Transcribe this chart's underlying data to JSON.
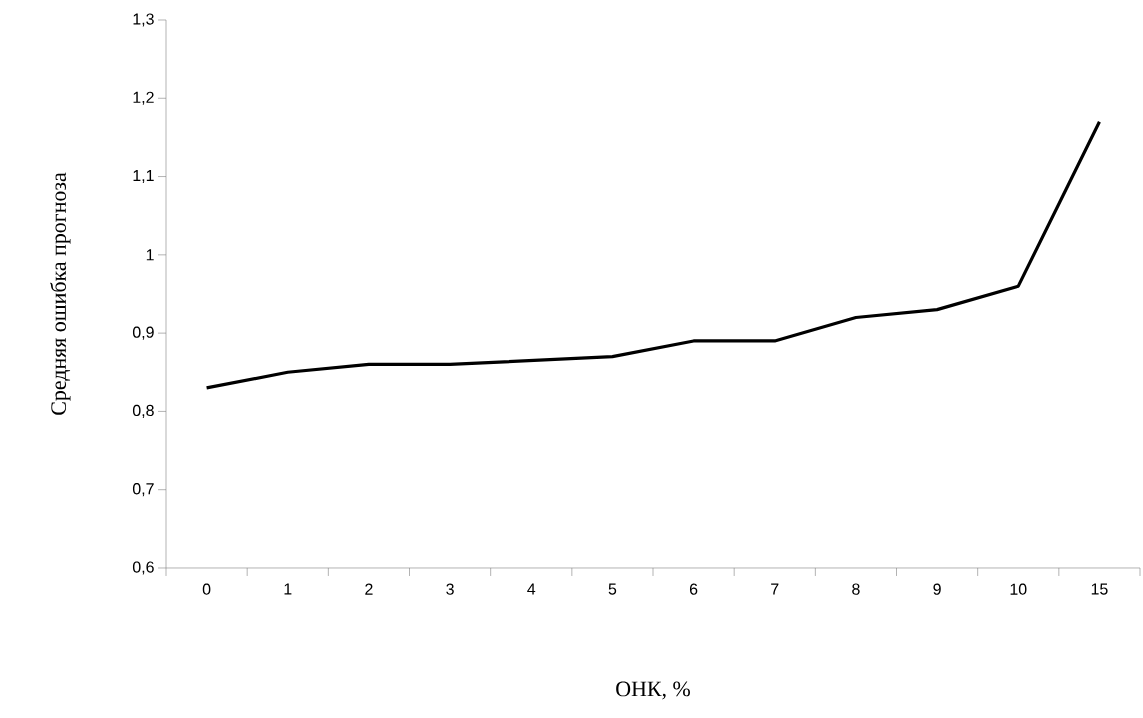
{
  "chart_data": {
    "type": "line",
    "xlabel": "ОНК, %",
    "ylabel": "Средняя ошибка прогноза",
    "categories": [
      "0",
      "1",
      "2",
      "3",
      "4",
      "5",
      "6",
      "7",
      "8",
      "9",
      "10",
      "15"
    ],
    "series": [
      {
        "color": "#000000",
        "values": [
          0.83,
          0.85,
          0.86,
          0.86,
          0.865,
          0.87,
          0.89,
          0.89,
          0.92,
          0.93,
          0.96,
          1.17
        ]
      }
    ],
    "ylim": [
      0.6,
      1.3
    ],
    "yticks": [
      {
        "value": 0.6,
        "label": "0,6"
      },
      {
        "value": 0.7,
        "label": "0,7"
      },
      {
        "value": 0.8,
        "label": "0,8"
      },
      {
        "value": 0.9,
        "label": "0,9"
      },
      {
        "value": 1,
        "label": "1"
      },
      {
        "value": 1.1,
        "label": "1,1"
      },
      {
        "value": 1.2,
        "label": "1,2"
      },
      {
        "value": 1.3,
        "label": "1,3"
      }
    ]
  }
}
